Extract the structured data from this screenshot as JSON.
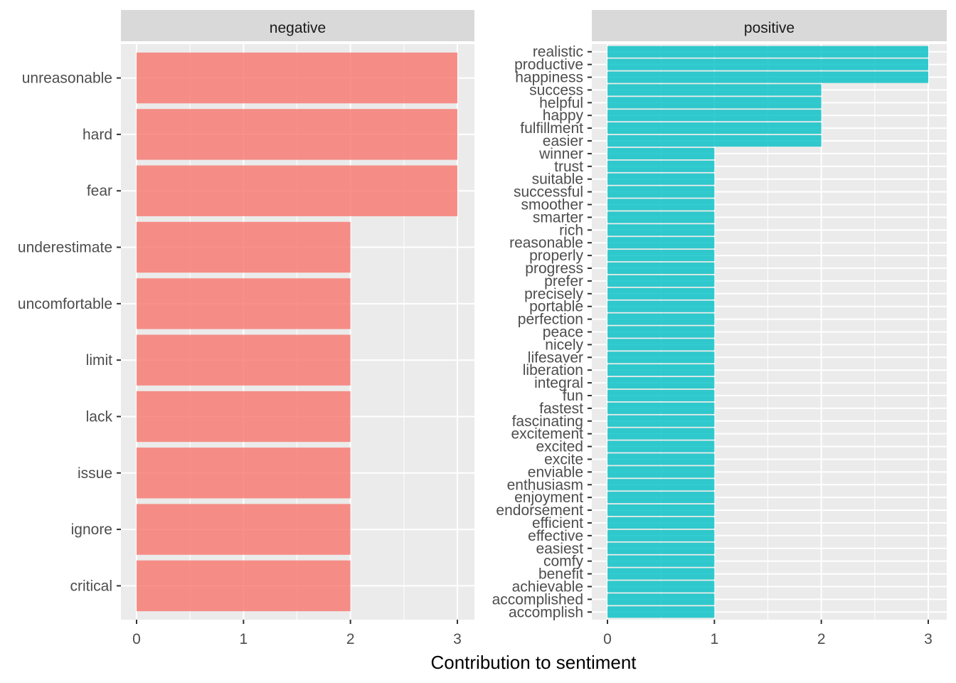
{
  "chart_data": {
    "type": "bar",
    "orientation": "horizontal",
    "faceted": true,
    "xlabel": "Contribution to sentiment",
    "ylabel": "",
    "grid": true,
    "legend": "none",
    "facets": [
      {
        "name": "negative",
        "color": "#F8766D",
        "xlim": [
          0,
          3
        ],
        "x_ticks": [
          0,
          1,
          2,
          3
        ],
        "categories": [
          "unreasonable",
          "hard",
          "fear",
          "underestimate",
          "uncomfortable",
          "limit",
          "lack",
          "issue",
          "ignore",
          "critical"
        ],
        "values": [
          3,
          3,
          3,
          2,
          2,
          2,
          2,
          2,
          2,
          2
        ]
      },
      {
        "name": "positive",
        "color": "#00BFC4",
        "xlim": [
          0,
          3
        ],
        "x_ticks": [
          0,
          1,
          2,
          3
        ],
        "categories": [
          "realistic",
          "productive",
          "happiness",
          "success",
          "helpful",
          "happy",
          "fulfillment",
          "easier",
          "winner",
          "trust",
          "suitable",
          "successful",
          "smoother",
          "smarter",
          "rich",
          "reasonable",
          "properly",
          "progress",
          "prefer",
          "precisely",
          "portable",
          "perfection",
          "peace",
          "nicely",
          "lifesaver",
          "liberation",
          "integral",
          "fun",
          "fastest",
          "fascinating",
          "excitement",
          "excited",
          "excite",
          "enviable",
          "enthusiasm",
          "enjoyment",
          "endorsement",
          "efficient",
          "effective",
          "easiest",
          "comfy",
          "benefit",
          "achievable",
          "accomplished",
          "accomplish"
        ],
        "values": [
          3,
          3,
          3,
          2,
          2,
          2,
          2,
          2,
          1,
          1,
          1,
          1,
          1,
          1,
          1,
          1,
          1,
          1,
          1,
          1,
          1,
          1,
          1,
          1,
          1,
          1,
          1,
          1,
          1,
          1,
          1,
          1,
          1,
          1,
          1,
          1,
          1,
          1,
          1,
          1,
          1,
          1,
          1,
          1,
          1
        ]
      }
    ]
  }
}
